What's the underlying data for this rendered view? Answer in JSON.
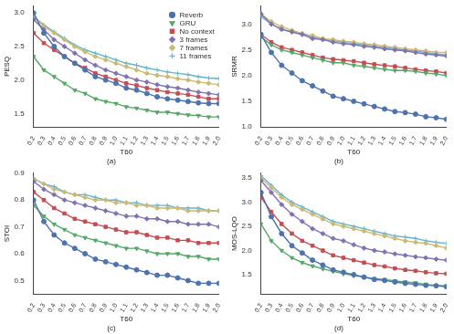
{
  "chart_data": [
    {
      "type": "line",
      "title": "(a)",
      "x_label": "T60",
      "y_label": "PESQ",
      "grid": false,
      "legend": "upper right",
      "categories": [
        "0.2",
        "0.3",
        "0.4",
        "0.5",
        "0.6",
        "0.7",
        "0.8",
        "0.9",
        "1.0",
        "1.1",
        "1.2",
        "1.3",
        "1.4",
        "1.5",
        "1.6",
        "1.7",
        "1.8",
        "1.9",
        "2.0"
      ],
      "ylim": [
        1.3,
        3.1
      ],
      "yticks": [
        1.5,
        {
          "value": 2,
          "label": "2.0"
        },
        2.5,
        {
          "value": 3,
          "label": "3.0"
        }
      ],
      "series": [
        {
          "name": "Reverb",
          "color": "#4c72b0",
          "marker": "circle",
          "values": [
            3.0,
            2.7,
            2.5,
            2.35,
            2.25,
            2.15,
            2.05,
            2.0,
            1.95,
            1.88,
            1.85,
            1.8,
            1.75,
            1.72,
            1.7,
            1.68,
            1.66,
            1.65,
            1.65
          ]
        },
        {
          "name": "GRU",
          "color": "#55a868",
          "marker": "triangle_down",
          "values": [
            2.35,
            2.15,
            2.05,
            1.95,
            1.85,
            1.8,
            1.72,
            1.68,
            1.65,
            1.6,
            1.58,
            1.55,
            1.52,
            1.52,
            1.5,
            1.48,
            1.47,
            1.45,
            1.45
          ]
        },
        {
          "name": "No context",
          "color": "#c44e52",
          "marker": "square",
          "values": [
            2.7,
            2.55,
            2.45,
            2.35,
            2.25,
            2.18,
            2.1,
            2.05,
            2.0,
            1.95,
            1.92,
            1.88,
            1.85,
            1.82,
            1.8,
            1.78,
            1.75,
            1.72,
            1.72
          ]
        },
        {
          "name": "3 frames",
          "color": "#8172b2",
          "marker": "diamond",
          "values": [
            2.9,
            2.75,
            2.6,
            2.5,
            2.4,
            2.3,
            2.22,
            2.15,
            2.1,
            2.05,
            2.0,
            1.97,
            1.93,
            1.9,
            1.88,
            1.85,
            1.82,
            1.8,
            1.78
          ]
        },
        {
          "name": "7 frames",
          "color": "#ccb974",
          "marker": "thin_diamond",
          "values": [
            2.95,
            2.8,
            2.7,
            2.6,
            2.5,
            2.42,
            2.35,
            2.3,
            2.25,
            2.2,
            2.15,
            2.1,
            2.07,
            2.05,
            2.02,
            2.0,
            1.97,
            1.95,
            1.93
          ]
        },
        {
          "name": "11 frames",
          "color": "#64b5cd",
          "marker": "plus",
          "values": [
            2.95,
            2.82,
            2.72,
            2.62,
            2.52,
            2.45,
            2.4,
            2.35,
            2.3,
            2.25,
            2.22,
            2.18,
            2.15,
            2.12,
            2.1,
            2.08,
            2.05,
            2.03,
            2.02
          ]
        }
      ]
    },
    {
      "type": "line",
      "title": "(b)",
      "x_label": "T60",
      "y_label": "SRMR",
      "grid": false,
      "categories": [
        "0.2",
        "0.3",
        "0.4",
        "0.5",
        "0.6",
        "0.7",
        "0.8",
        "0.9",
        "1.0",
        "1.1",
        "1.2",
        "1.3",
        "1.4",
        "1.5",
        "1.6",
        "1.7",
        "1.8",
        "1.9",
        "2.0"
      ],
      "ylim": [
        1.0,
        3.35
      ],
      "yticks": [
        {
          "value": 1,
          "label": "1.0"
        },
        1.5,
        {
          "value": 2,
          "label": "2.0"
        },
        2.5,
        {
          "value": 3,
          "label": "3.0"
        }
      ],
      "series": [
        {
          "name": "Reverb",
          "color": "#4c72b0",
          "marker": "circle",
          "values": [
            2.8,
            2.45,
            2.2,
            2.05,
            1.9,
            1.8,
            1.7,
            1.6,
            1.55,
            1.5,
            1.45,
            1.4,
            1.35,
            1.3,
            1.28,
            1.25,
            1.2,
            1.18,
            1.15
          ]
        },
        {
          "name": "GRU",
          "color": "#55a868",
          "marker": "triangle_down",
          "values": [
            2.75,
            2.6,
            2.5,
            2.45,
            2.4,
            2.35,
            2.3,
            2.25,
            2.25,
            2.2,
            2.18,
            2.15,
            2.12,
            2.1,
            2.1,
            2.08,
            2.05,
            2.03,
            2.0
          ]
        },
        {
          "name": "No context",
          "color": "#c44e52",
          "marker": "square",
          "values": [
            2.8,
            2.65,
            2.55,
            2.5,
            2.45,
            2.4,
            2.35,
            2.32,
            2.3,
            2.28,
            2.25,
            2.22,
            2.2,
            2.18,
            2.15,
            2.12,
            2.1,
            2.08,
            2.05
          ]
        },
        {
          "name": "3 frames",
          "color": "#8172b2",
          "marker": "diamond",
          "values": [
            3.2,
            3.0,
            2.9,
            2.85,
            2.8,
            2.72,
            2.7,
            2.65,
            2.62,
            2.6,
            2.57,
            2.55,
            2.52,
            2.5,
            2.48,
            2.45,
            2.42,
            2.4,
            2.38
          ]
        },
        {
          "name": "7 frames",
          "color": "#ccb974",
          "marker": "thin_diamond",
          "values": [
            3.2,
            3.05,
            2.95,
            2.88,
            2.82,
            2.78,
            2.72,
            2.7,
            2.67,
            2.65,
            2.62,
            2.6,
            2.57,
            2.55,
            2.52,
            2.5,
            2.48,
            2.45,
            2.45
          ]
        },
        {
          "name": "11 frames",
          "color": "#64b5cd",
          "marker": "plus",
          "values": [
            3.15,
            3.0,
            2.9,
            2.85,
            2.8,
            2.75,
            2.7,
            2.68,
            2.65,
            2.62,
            2.6,
            2.57,
            2.55,
            2.52,
            2.5,
            2.48,
            2.45,
            2.42,
            2.4
          ]
        }
      ]
    },
    {
      "type": "line",
      "title": "(c)",
      "x_label": "T60",
      "y_label": "STOI",
      "grid": false,
      "categories": [
        "0.2",
        "0.3",
        "0.4",
        "0.5",
        "0.6",
        "0.7",
        "0.8",
        "0.9",
        "1.0",
        "1.1",
        "1.2",
        "1.3",
        "1.4",
        "1.5",
        "1.6",
        "1.7",
        "1.8",
        "1.9",
        "2.0"
      ],
      "ylim": [
        0.45,
        0.9
      ],
      "yticks": [
        0.5,
        0.6,
        0.7,
        0.8,
        0.9
      ],
      "series": [
        {
          "name": "Reverb",
          "color": "#4c72b0",
          "marker": "circle",
          "values": [
            0.8,
            0.72,
            0.67,
            0.64,
            0.62,
            0.6,
            0.58,
            0.57,
            0.56,
            0.55,
            0.54,
            0.53,
            0.52,
            0.52,
            0.51,
            0.5,
            0.49,
            0.49,
            0.49
          ]
        },
        {
          "name": "GRU",
          "color": "#55a868",
          "marker": "triangle_down",
          "values": [
            0.78,
            0.74,
            0.71,
            0.69,
            0.67,
            0.66,
            0.65,
            0.64,
            0.63,
            0.62,
            0.62,
            0.61,
            0.6,
            0.6,
            0.6,
            0.59,
            0.59,
            0.58,
            0.58
          ]
        },
        {
          "name": "No context",
          "color": "#c44e52",
          "marker": "square",
          "values": [
            0.83,
            0.8,
            0.77,
            0.75,
            0.73,
            0.72,
            0.71,
            0.7,
            0.69,
            0.68,
            0.68,
            0.67,
            0.66,
            0.66,
            0.65,
            0.65,
            0.64,
            0.64,
            0.64
          ]
        },
        {
          "name": "3 frames",
          "color": "#8172b2",
          "marker": "diamond",
          "values": [
            0.87,
            0.84,
            0.82,
            0.8,
            0.79,
            0.78,
            0.77,
            0.76,
            0.75,
            0.74,
            0.74,
            0.73,
            0.73,
            0.72,
            0.72,
            0.71,
            0.71,
            0.71,
            0.7
          ]
        },
        {
          "name": "7 frames",
          "color": "#ccb974",
          "marker": "thin_diamond",
          "values": [
            0.88,
            0.86,
            0.84,
            0.83,
            0.82,
            0.81,
            0.8,
            0.8,
            0.79,
            0.79,
            0.78,
            0.78,
            0.77,
            0.77,
            0.77,
            0.76,
            0.76,
            0.76,
            0.76
          ]
        },
        {
          "name": "11 frames",
          "color": "#64b5cd",
          "marker": "plus",
          "values": [
            0.88,
            0.86,
            0.85,
            0.83,
            0.82,
            0.82,
            0.81,
            0.8,
            0.8,
            0.79,
            0.79,
            0.78,
            0.78,
            0.78,
            0.77,
            0.77,
            0.77,
            0.76,
            0.76
          ]
        }
      ]
    },
    {
      "type": "line",
      "title": "(d)",
      "x_label": "T60",
      "y_label": "MOS-LQO",
      "grid": false,
      "categories": [
        "0.2",
        "0.3",
        "0.4",
        "0.5",
        "0.6",
        "0.7",
        "0.8",
        "0.9",
        "1.0",
        "1.1",
        "1.2",
        "1.3",
        "1.4",
        "1.5",
        "1.6",
        "1.7",
        "1.8",
        "1.9",
        "2.0"
      ],
      "ylim": [
        1.1,
        3.6
      ],
      "yticks": [
        1.5,
        {
          "value": 2,
          "label": "2.0"
        },
        2.5,
        {
          "value": 3,
          "label": "3.0"
        },
        3.5
      ],
      "series": [
        {
          "name": "Reverb",
          "color": "#4c72b0",
          "marker": "circle",
          "values": [
            3.2,
            2.7,
            2.35,
            2.1,
            1.95,
            1.8,
            1.7,
            1.6,
            1.55,
            1.5,
            1.45,
            1.4,
            1.38,
            1.35,
            1.32,
            1.3,
            1.28,
            1.27,
            1.25
          ]
        },
        {
          "name": "GRU",
          "color": "#55a868",
          "marker": "triangle_down",
          "values": [
            2.55,
            2.2,
            2.0,
            1.85,
            1.75,
            1.68,
            1.62,
            1.57,
            1.52,
            1.48,
            1.45,
            1.42,
            1.4,
            1.37,
            1.35,
            1.33,
            1.3,
            1.28,
            1.27
          ]
        },
        {
          "name": "No context",
          "color": "#c44e52",
          "marker": "square",
          "values": [
            3.1,
            2.8,
            2.55,
            2.35,
            2.2,
            2.1,
            2.0,
            1.9,
            1.85,
            1.8,
            1.75,
            1.7,
            1.67,
            1.63,
            1.6,
            1.58,
            1.55,
            1.53,
            1.52
          ]
        },
        {
          "name": "3 frames",
          "color": "#8172b2",
          "marker": "diamond",
          "values": [
            3.45,
            3.2,
            2.95,
            2.75,
            2.6,
            2.45,
            2.35,
            2.25,
            2.2,
            2.12,
            2.05,
            2.0,
            1.97,
            1.93,
            1.9,
            1.87,
            1.85,
            1.82,
            1.8
          ]
        },
        {
          "name": "7 frames",
          "color": "#ccb974",
          "marker": "thin_diamond",
          "values": [
            3.5,
            3.3,
            3.1,
            2.95,
            2.85,
            2.75,
            2.65,
            2.55,
            2.5,
            2.45,
            2.4,
            2.35,
            2.3,
            2.25,
            2.2,
            2.17,
            2.15,
            2.1,
            2.05
          ]
        },
        {
          "name": "11 frames",
          "color": "#64b5cd",
          "marker": "plus",
          "values": [
            3.55,
            3.35,
            3.15,
            3.0,
            2.9,
            2.8,
            2.7,
            2.6,
            2.55,
            2.5,
            2.45,
            2.4,
            2.35,
            2.3,
            2.28,
            2.25,
            2.2,
            2.17,
            2.15
          ]
        }
      ]
    }
  ]
}
